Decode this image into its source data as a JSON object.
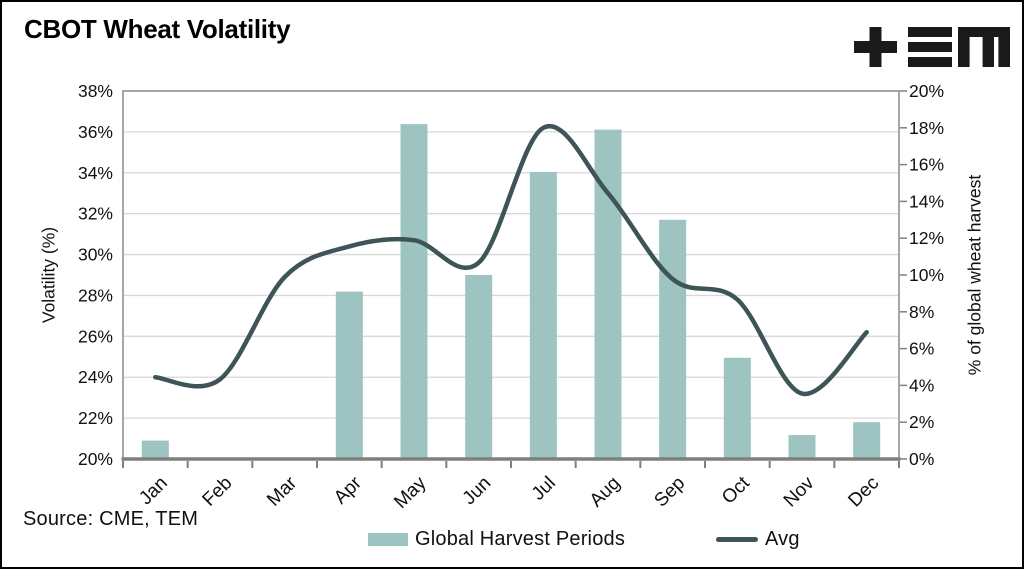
{
  "title": "CBOT Wheat Volatility",
  "logo_alt": "TEM",
  "source": "Source: CME, TEM",
  "chart_data": {
    "type": "combo-bar-line",
    "title": "CBOT Wheat Volatility",
    "categories": [
      "Jan",
      "Feb",
      "Mar",
      "Apr",
      "May",
      "Jun",
      "Jul",
      "Aug",
      "Sep",
      "Oct",
      "Nov",
      "Dec"
    ],
    "series": [
      {
        "name": "Global Harvest Periods",
        "type": "bar",
        "axis": "right",
        "color": "#9dc4c0",
        "values": [
          1.0,
          0,
          0,
          9.1,
          18.2,
          10.0,
          15.6,
          17.9,
          13.0,
          5.5,
          1.3,
          2.0
        ]
      },
      {
        "name": "Avg",
        "type": "line",
        "axis": "left",
        "color": "#3e5457",
        "values": [
          24.0,
          23.9,
          28.9,
          30.4,
          30.7,
          29.6,
          36.2,
          33.0,
          28.8,
          27.8,
          23.2,
          26.2
        ]
      }
    ],
    "left_axis": {
      "label": "Volatility (%)",
      "min": 20,
      "max": 38,
      "ticks": [
        "38%",
        "36%",
        "34%",
        "32%",
        "30%",
        "28%",
        "26%",
        "24%",
        "22%",
        "20%"
      ]
    },
    "right_axis": {
      "label": "% of global wheat harvest",
      "min": 0,
      "max": 20,
      "ticks": [
        "20%",
        "18%",
        "16%",
        "14%",
        "12%",
        "10%",
        "8%",
        "6%",
        "4%",
        "2%",
        "0%"
      ]
    },
    "grid": "horizontal",
    "legend_position": "bottom",
    "colors": {
      "gridline": "#d8d8d8",
      "frame": "#a6a6a6",
      "axis": "#7f7f7f",
      "text": "#111111"
    }
  }
}
